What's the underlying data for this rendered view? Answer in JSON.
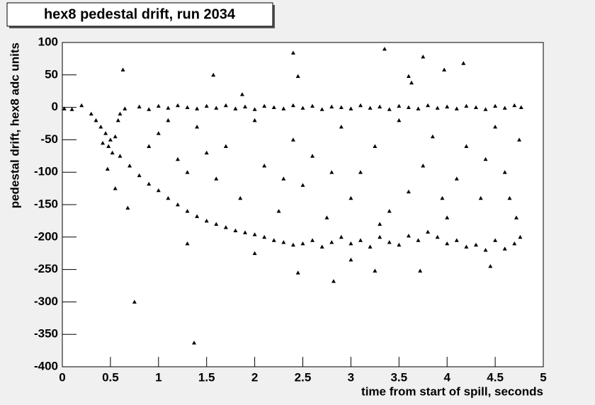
{
  "chart_data": {
    "type": "scatter",
    "title": "hex8 pedestal drift, run 2034",
    "x_label": "time from start of spill, seconds",
    "y_label": "pedestal drift, hex8 adc units",
    "color": "#000000",
    "xlim": [
      0,
      5
    ],
    "ylim": [
      -400,
      100
    ],
    "xticks": [
      0,
      0.5,
      1,
      1.5,
      2,
      2.5,
      3,
      3.5,
      4,
      4.5,
      5
    ],
    "yticks": [
      -400,
      -350,
      -300,
      -250,
      -200,
      -150,
      -100,
      -50,
      0,
      50,
      100
    ],
    "grid": false,
    "x": [
      0.02,
      0.1,
      0.2,
      0.3,
      0.65,
      0.8,
      0.9,
      1.0,
      1.1,
      1.2,
      1.3,
      1.4,
      1.5,
      1.6,
      1.7,
      1.8,
      1.9,
      2.0,
      2.1,
      2.2,
      2.3,
      2.4,
      2.5,
      2.6,
      2.7,
      2.8,
      2.9,
      3.0,
      3.1,
      3.2,
      3.3,
      3.4,
      3.5,
      3.6,
      3.7,
      3.8,
      3.9,
      4.0,
      4.1,
      4.2,
      4.3,
      4.4,
      4.5,
      4.6,
      4.7,
      4.77,
      0.35,
      0.4,
      0.45,
      0.5,
      0.55,
      0.42,
      0.48,
      0.52,
      0.58,
      0.6,
      0.47,
      0.55,
      0.6,
      0.7,
      0.8,
      0.9,
      1.0,
      1.1,
      1.2,
      1.3,
      1.4,
      1.5,
      1.6,
      1.7,
      1.8,
      1.9,
      2.0,
      2.1,
      2.2,
      2.3,
      2.4,
      2.5,
      2.6,
      2.7,
      2.8,
      2.9,
      3.0,
      3.1,
      3.2,
      3.3,
      3.4,
      3.5,
      3.6,
      3.7,
      3.8,
      3.9,
      4.0,
      4.1,
      4.2,
      4.3,
      4.4,
      4.5,
      4.6,
      4.7,
      4.76,
      2.45,
      2.82,
      3.25,
      3.72,
      4.45,
      2.0,
      3.0,
      1.0,
      1.2,
      1.4,
      1.6,
      1.7,
      1.85,
      2.0,
      2.1,
      2.25,
      2.4,
      2.5,
      2.6,
      2.75,
      2.9,
      3.0,
      3.1,
      3.25,
      3.4,
      3.5,
      3.6,
      3.75,
      3.85,
      4.0,
      4.1,
      4.2,
      4.35,
      4.5,
      4.6,
      4.75,
      4.72,
      0.9,
      1.1,
      1.3,
      1.5,
      2.3,
      2.8,
      3.3,
      3.95,
      4.4,
      4.65,
      0.63,
      1.57,
      1.87,
      2.4,
      2.45,
      3.35,
      3.6,
      3.63,
      3.75,
      3.97,
      4.17,
      0.75,
      1.37,
      1.3,
      0.68
    ],
    "values": [
      -2,
      -3,
      3,
      -10,
      -2,
      1,
      -3,
      2,
      -1,
      3,
      0,
      -2,
      2,
      -1,
      3,
      -2,
      1,
      -3,
      2,
      0,
      -2,
      3,
      -1,
      2,
      -3,
      1,
      0,
      -2,
      3,
      -1,
      1,
      -3,
      2,
      0,
      -2,
      3,
      -1,
      1,
      -2,
      2,
      0,
      -3,
      2,
      -1,
      3,
      0,
      -20,
      -30,
      -40,
      -50,
      -45,
      -55,
      -60,
      -70,
      -20,
      -10,
      -95,
      -125,
      -75,
      -90,
      -105,
      -118,
      -128,
      -140,
      -150,
      -160,
      -168,
      -175,
      -180,
      -185,
      -190,
      -193,
      -196,
      -200,
      -205,
      -208,
      -212,
      -210,
      -205,
      -215,
      -208,
      -200,
      -210,
      -205,
      -215,
      -200,
      -208,
      -212,
      -198,
      -205,
      -192,
      -200,
      -210,
      -205,
      -215,
      -212,
      -220,
      -205,
      -218,
      -210,
      -200,
      -255,
      -268,
      -252,
      -252,
      -245,
      -225,
      -235,
      -40,
      -80,
      -30,
      -110,
      -60,
      -140,
      -20,
      -90,
      -160,
      -50,
      -120,
      -75,
      -170,
      -30,
      -140,
      -100,
      -60,
      -160,
      -20,
      -130,
      -90,
      -45,
      -170,
      -110,
      -60,
      -140,
      -30,
      -100,
      -50,
      -170,
      -60,
      -20,
      -100,
      -70,
      -110,
      -100,
      -180,
      -140,
      -80,
      -140,
      58,
      50,
      20,
      84,
      48,
      90,
      48,
      38,
      78,
      58,
      68,
      -300,
      -363,
      -210,
      -155
    ]
  }
}
